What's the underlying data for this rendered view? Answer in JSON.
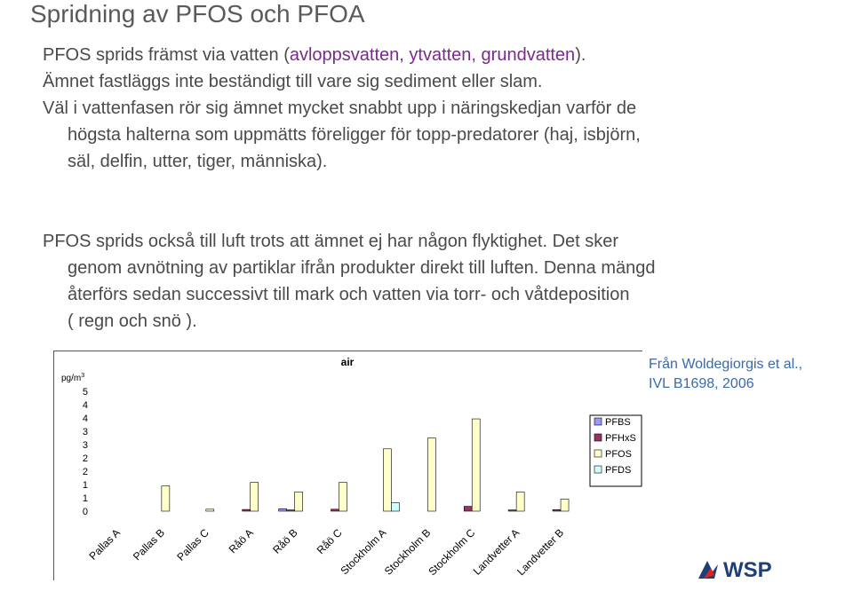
{
  "title": "Spridning av PFOS och PFOA",
  "paragraph1": {
    "line1_pre": "PFOS sprids främst via vatten (",
    "line1_highlight": "avloppsvatten, ytvatten, grundvatten",
    "line1_post": ").",
    "line2": "Ämnet fastläggs inte beständigt till vare sig sediment eller slam.",
    "line3": "Väl i vattenfasen rör sig ämnet mycket snabbt upp i näringskedjan varför de",
    "line4": "högsta halterna som uppmätts föreligger för topp-predatorer (haj, isbjörn,",
    "line5": "säl, delfin, utter, tiger, människa)."
  },
  "paragraph2": {
    "line1": "PFOS sprids också till luft trots att ämnet ej har någon flyktighet. Det sker",
    "line2": "genom avnötning av partiklar ifrån produkter direkt till luften. Denna mängd",
    "line3": "återförs sedan successivt till mark och vatten via torr- och våtdeposition",
    "line4": "( regn och snö )."
  },
  "citation": {
    "line1": "Från Woldegiorgis et al.,",
    "line2": "IVL B1698, 2006"
  },
  "logo": {
    "text": "WSP",
    "color": "#e2231a"
  },
  "chart_data": {
    "type": "bar",
    "title": "air",
    "ylabel": "pg/m",
    "ylabel_sup": "3",
    "ylim": [
      0,
      5
    ],
    "ytick_labels": [
      "5",
      "4",
      "4",
      "3",
      "3",
      "2",
      "2",
      "1",
      "1",
      "0"
    ],
    "categories": [
      "Pallas A",
      "Pallas B",
      "Pallas C",
      "Råö A",
      "Råö B",
      "Råö C",
      "Stockholm A",
      "Stockholm B",
      "Stockholm C",
      "Landvetter A",
      "Landvetter B"
    ],
    "legend_position": "right",
    "series": [
      {
        "name": "PFBS",
        "color": "#9999ff",
        "values": [
          0,
          0,
          0,
          0,
          0.1,
          0,
          0,
          0,
          0,
          0,
          0
        ]
      },
      {
        "name": "PFHxS",
        "color": "#993366",
        "values": [
          0,
          0,
          0,
          0.07,
          0.05,
          0.08,
          0,
          0,
          0.2,
          0.05,
          0.06
        ]
      },
      {
        "name": "PFOS",
        "color": "#ffffcc",
        "values": [
          0,
          1.05,
          0.08,
          1.2,
          0.8,
          1.2,
          2.6,
          3.05,
          3.85,
          0.8,
          0.5
        ]
      },
      {
        "name": "PFDS",
        "color": "#ccffff",
        "values": [
          0,
          0,
          0,
          0,
          0,
          0,
          0.35,
          0,
          0,
          0,
          0
        ]
      }
    ]
  }
}
